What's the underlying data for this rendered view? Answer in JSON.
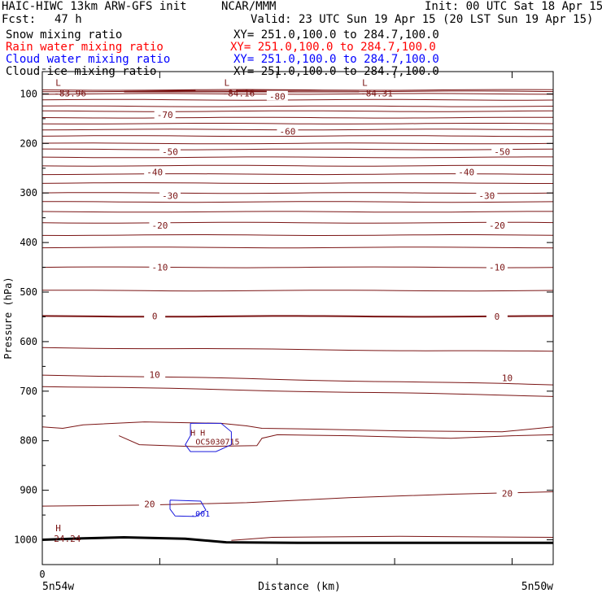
{
  "header": {
    "model": "HAIC-HIWC 13km ARW-GFS init",
    "org": "NCAR/MMM",
    "init": "Init: 00 UTC Sat 18 Apr 15",
    "fcst_label": "Fcst:",
    "fcst_value": "47 h",
    "valid": "Valid: 23 UTC Sun 19 Apr 15 (20 LST Sun 19 Apr 15)"
  },
  "fields": [
    {
      "name": "Snow mixing ratio",
      "xy": "XY= 251.0,100.0 to 284.7,100.0",
      "color": "#000000"
    },
    {
      "name": "Rain water mixing ratio",
      "xy": "XY= 251.0,100.0 to 284.7,100.0",
      "color": "#ff0000"
    },
    {
      "name": "Cloud water mixing ratio",
      "xy": "XY= 251.0,100.0 to 284.7,100.0",
      "color": "#0000ff"
    },
    {
      "name": "Cloud ice mixing ratio",
      "xy": "XY= 251.0,100.0 to 284.7,100.0",
      "color": "#000000"
    }
  ],
  "colors": {
    "temperature": "#7a1414",
    "cloud": "#1a1adc",
    "terrain": "#000000",
    "axis": "#000000"
  },
  "chart_data": {
    "type": "line",
    "ylabel": "Pressure (hPa)",
    "xlabel": "Distance (km)",
    "ylim": [
      1050,
      55
    ],
    "y_ticks": [
      100,
      200,
      300,
      400,
      500,
      600,
      700,
      800,
      900,
      1000
    ],
    "x_tick_label": "0",
    "x_start_label": "5n54w",
    "x_end_label": "5n50w",
    "x_range": [
      0,
      100
    ],
    "contours": [
      {
        "level": "-80",
        "labels": [
          {
            "text": "-80",
            "x": 46,
            "p": 105
          }
        ]
      },
      {
        "level": "-70",
        "labels": [
          {
            "text": "-70",
            "x": 24,
            "p": 142
          }
        ]
      },
      {
        "level": "-60",
        "labels": [
          {
            "text": "-60",
            "x": 48,
            "p": 176
          }
        ]
      },
      {
        "level": "-50",
        "labels": [
          {
            "text": "-50",
            "x": 25,
            "p": 217
          },
          {
            "text": "-50",
            "x": 90,
            "p": 217
          }
        ]
      },
      {
        "level": "-40",
        "labels": [
          {
            "text": "-40",
            "x": 22,
            "p": 258
          },
          {
            "text": "-40",
            "x": 83,
            "p": 258
          }
        ]
      },
      {
        "level": "-30",
        "labels": [
          {
            "text": "-30",
            "x": 25,
            "p": 305
          },
          {
            "text": "-30",
            "x": 87,
            "p": 305
          }
        ]
      },
      {
        "level": "-20",
        "labels": [
          {
            "text": "-20",
            "x": 23,
            "p": 365
          },
          {
            "text": "-20",
            "x": 89,
            "p": 365
          }
        ]
      },
      {
        "level": "-10",
        "labels": [
          {
            "text": "-10",
            "x": 23,
            "p": 450
          },
          {
            "text": "-10",
            "x": 89,
            "p": 450
          }
        ]
      },
      {
        "level": "0",
        "labels": [
          {
            "text": "0",
            "x": 22,
            "p": 548
          },
          {
            "text": "0",
            "x": 89,
            "p": 549
          }
        ]
      },
      {
        "level": "10",
        "labels": [
          {
            "text": "10",
            "x": 22,
            "p": 667
          },
          {
            "text": "10",
            "x": 91,
            "p": 673
          }
        ]
      },
      {
        "level": "20",
        "labels": [
          {
            "text": "20",
            "x": 21,
            "p": 928
          },
          {
            "text": "20",
            "x": 91,
            "p": 906
          }
        ]
      }
    ],
    "extrema": [
      {
        "type": "L",
        "value": "-83.96",
        "x": 1,
        "p": 97
      },
      {
        "type": "L",
        "value": "-84.16",
        "x": 34,
        "p": 97
      },
      {
        "type": "L",
        "value": "-84.31",
        "x": 61,
        "p": 97
      },
      {
        "type": "H",
        "value": "24.24",
        "x": 1,
        "p": 996
      }
    ],
    "cloud_labels": [
      {
        "text": "H H",
        "x": 29,
        "p": 790,
        "color": "#7a1414"
      },
      {
        "text": "OC5030715",
        "x": 30,
        "p": 808,
        "color": "#7a1414"
      },
      {
        "text": ".001",
        "x": 29,
        "p": 953,
        "color": "#1a1adc"
      }
    ]
  }
}
